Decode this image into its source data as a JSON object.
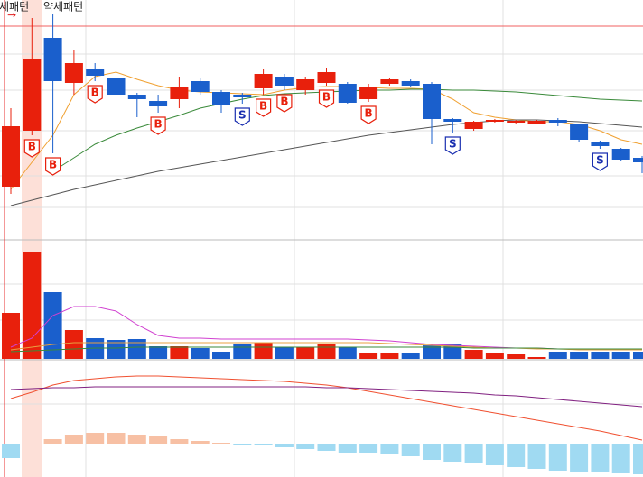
{
  "header": {
    "labels": [
      "약세패턴",
      "약세패턴"
    ]
  },
  "chart_data": [
    {
      "type": "candlestick",
      "up_color": "#e8200c",
      "down_color": "#1a5fcc",
      "ylim": [
        0,
        265
      ],
      "open": [
        58,
        120,
        223,
        173,
        189,
        178,
        160,
        153,
        155,
        175,
        163,
        160,
        167,
        180,
        165,
        173,
        172,
        155,
        172,
        175,
        172,
        133,
        122,
        130,
        129,
        128,
        132,
        127,
        107,
        100,
        90
      ],
      "high": [
        145,
        245,
        250,
        210,
        195,
        183,
        162,
        160,
        180,
        178,
        165,
        162,
        188,
        183,
        180,
        190,
        174,
        172,
        179,
        177,
        174,
        134,
        131,
        133,
        132,
        132,
        134,
        128,
        109,
        101,
        92
      ],
      "low": [
        50,
        115,
        95,
        160,
        175,
        158,
        135,
        140,
        145,
        160,
        140,
        150,
        160,
        165,
        160,
        170,
        150,
        152,
        170,
        168,
        105,
        118,
        120,
        129,
        128,
        127,
        125,
        108,
        100,
        87,
        73
      ],
      "close": [
        125,
        200,
        175,
        195,
        181,
        160,
        155,
        147,
        169,
        163,
        148,
        157,
        183,
        170,
        177,
        185,
        151,
        168,
        177,
        170,
        133,
        130,
        130,
        132,
        131,
        131,
        129,
        110,
        103,
        88,
        85
      ],
      "signals": [
        null,
        "B",
        "B",
        null,
        "B",
        null,
        null,
        "B",
        null,
        null,
        null,
        "S",
        "B",
        "B",
        null,
        "B",
        null,
        "B",
        null,
        null,
        null,
        "S",
        null,
        null,
        null,
        null,
        null,
        null,
        "S",
        null,
        null
      ],
      "buy_color": "#e8200c",
      "sell_color": "#1a2fb0",
      "series": [
        {
          "color": "#f0a030",
          "values": [
            55,
            85,
            115,
            160,
            180,
            185,
            177,
            170,
            165,
            163,
            162,
            161,
            160,
            165,
            168,
            169,
            169,
            168,
            167,
            167,
            166,
            155,
            140,
            135,
            132,
            130,
            130,
            127,
            120,
            110,
            105
          ]
        },
        {
          "color": "#3a8a3a",
          "values": [
            null,
            null,
            75,
            90,
            105,
            115,
            123,
            130,
            137,
            145,
            150,
            155,
            159,
            161,
            162,
            163,
            164,
            165,
            165,
            166,
            166,
            165,
            165,
            164,
            163,
            161,
            159,
            157,
            155,
            154,
            153
          ]
        },
        {
          "color": "#555555",
          "values": [
            37,
            43,
            49,
            55,
            60,
            65,
            70,
            75,
            79,
            83,
            87,
            91,
            95,
            99,
            103,
            107,
            111,
            115,
            118,
            121,
            124,
            127,
            129,
            131,
            132,
            132,
            131,
            130,
            128,
            126,
            124
          ]
        }
      ]
    },
    {
      "type": "bar",
      "ylim": [
        0,
        130
      ],
      "values": [
        51,
        118,
        74,
        32,
        23,
        21,
        22,
        14,
        14,
        12,
        8,
        17,
        18,
        13,
        13,
        16,
        13,
        6,
        6,
        6,
        15,
        17,
        10,
        7,
        5,
        2,
        8,
        8,
        8,
        8,
        8
      ],
      "series": [
        {
          "color": "#d040d0",
          "values": [
            13,
            23,
            48,
            58,
            58,
            53,
            38,
            26,
            23,
            23,
            22,
            22,
            22,
            22,
            22,
            22,
            22,
            21,
            20,
            18,
            16,
            15,
            14,
            13,
            12,
            12,
            11,
            11,
            11,
            10,
            10
          ]
        },
        {
          "color": "#e8a040",
          "values": [
            10,
            13,
            16,
            18,
            18,
            18,
            18,
            18,
            18,
            18,
            18,
            18,
            18,
            18,
            18,
            18,
            18,
            18,
            17,
            16,
            15,
            14,
            13,
            12,
            12,
            11,
            11,
            10,
            10,
            10,
            10
          ]
        },
        {
          "color": "#3a8a3a",
          "values": [
            8,
            9,
            10,
            11,
            12,
            12,
            13,
            13,
            13,
            13,
            13,
            13,
            13,
            13,
            13,
            13,
            13,
            13,
            13,
            13,
            13,
            13,
            12,
            12,
            12,
            12,
            11,
            11,
            11,
            11,
            11
          ]
        }
      ]
    },
    {
      "type": "bar",
      "ylim": [
        -37,
        92
      ],
      "positive_color": "#f7c0a4",
      "negative_color": "#a0daf2",
      "values": [
        -16,
        0,
        5,
        10,
        12,
        12,
        10,
        8,
        5,
        3,
        1,
        -1,
        -2,
        -4,
        -6,
        -8,
        -10,
        -10,
        -12,
        -14,
        -18,
        -20,
        -22,
        -24,
        -26,
        -28,
        -30,
        -31,
        -32,
        -33,
        -34
      ],
      "series": [
        {
          "color": "#f05030",
          "values": [
            50,
            57,
            65,
            70,
            72,
            74,
            75,
            75,
            74,
            73,
            72,
            71,
            70,
            69,
            67,
            65,
            62,
            58,
            54,
            50,
            46,
            42,
            38,
            34,
            30,
            26,
            22,
            18,
            14,
            9,
            4
          ]
        },
        {
          "color": "#802080",
          "values": [
            60,
            61,
            62,
            62,
            63,
            63,
            63,
            63,
            63,
            63,
            63,
            63,
            63,
            63,
            63,
            62,
            62,
            61,
            60,
            59,
            58,
            57,
            56,
            54,
            53,
            51,
            49,
            47,
            45,
            43,
            41
          ]
        }
      ]
    }
  ]
}
